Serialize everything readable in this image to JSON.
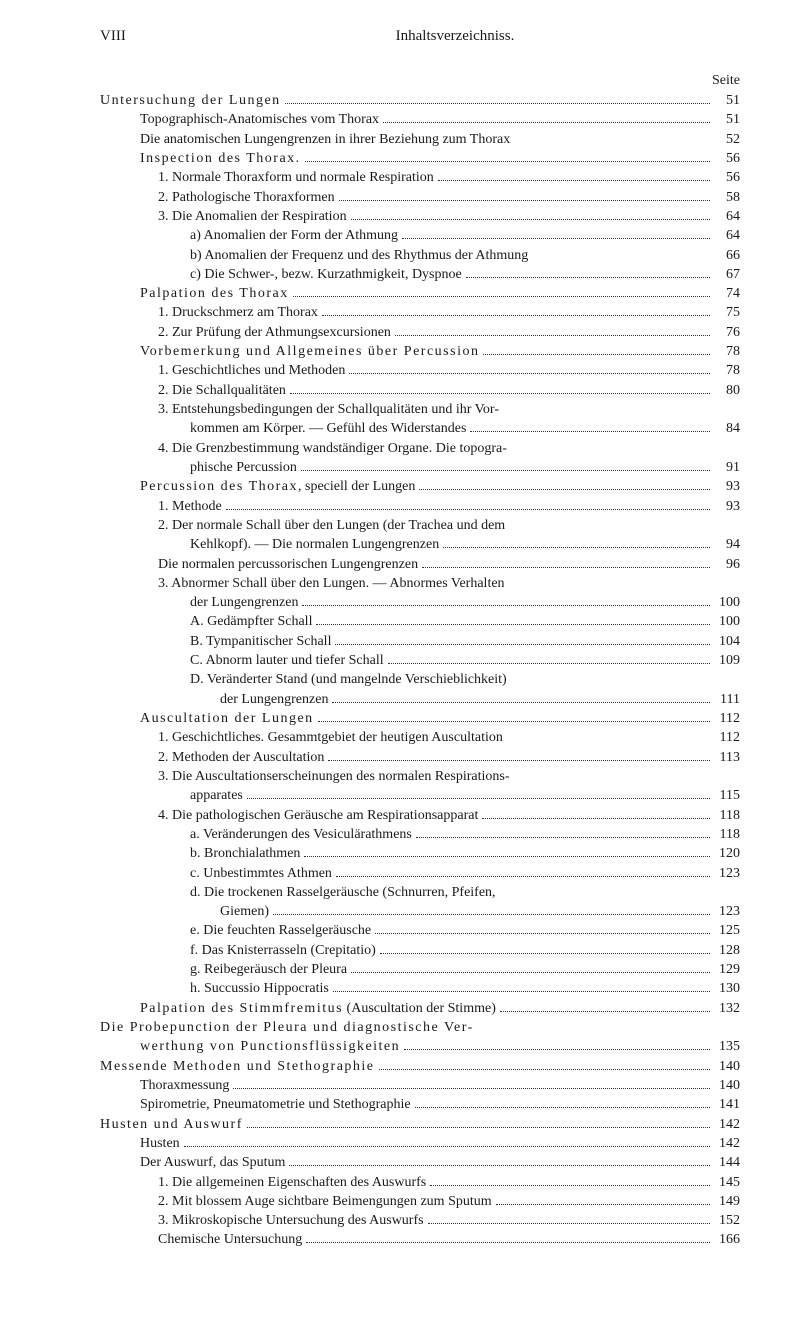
{
  "header": {
    "pageNumber": "VIII",
    "title": "Inhaltsverzeichniss."
  },
  "seiteLabel": "Seite",
  "entries": [
    {
      "text": "<span class='spaced'>Untersuchung der Lungen</span>",
      "page": "51",
      "indent": 0
    },
    {
      "text": "Topographisch-Anatomisches vom Thorax",
      "page": "51",
      "indent": 1
    },
    {
      "text": "Die anatomischen Lungengrenzen in ihrer Beziehung zum Thorax",
      "page": "52",
      "indent": 1,
      "noDots": true
    },
    {
      "text": "<span class='spaced'>Inspection des Thorax.</span>",
      "page": "56",
      "indent": 1
    },
    {
      "text": "1. Normale Thoraxform und normale Respiration",
      "page": "56",
      "indent": 2
    },
    {
      "text": "2. Pathologische Thoraxformen",
      "page": "58",
      "indent": 2
    },
    {
      "text": "3. Die Anomalien der Respiration",
      "page": "64",
      "indent": 2
    },
    {
      "text": "a) Anomalien der Form der Athmung",
      "page": "64",
      "indent": 3
    },
    {
      "text": "b) Anomalien der Frequenz und des Rhythmus der Athmung",
      "page": "66",
      "indent": 3,
      "noDots": true
    },
    {
      "text": "c) Die Schwer-, bezw. Kurzathmigkeit, Dyspnoe",
      "page": "67",
      "indent": 3
    },
    {
      "text": "<span class='spaced'>Palpation des Thorax</span>",
      "page": "74",
      "indent": 1
    },
    {
      "text": "1. Druckschmerz am Thorax",
      "page": "75",
      "indent": 2
    },
    {
      "text": "2. Zur Prüfung der Athmungsexcursionen",
      "page": "76",
      "indent": 2
    },
    {
      "text": "<span class='spaced'>Vorbemerkung und Allgemeines über Percussion</span>",
      "page": "78",
      "indent": 1
    },
    {
      "text": "1. Geschichtliches und Methoden",
      "page": "78",
      "indent": 2
    },
    {
      "text": "2. Die Schallqualitäten",
      "page": "80",
      "indent": 2
    },
    {
      "text": "3. Entstehungsbedingungen der Schallqualitäten und ihr Vor-",
      "page": "",
      "indent": 2,
      "noDots": true,
      "noPage": true
    },
    {
      "text": "kommen am Körper. — Gefühl des Widerstandes",
      "page": "84",
      "indent": 3,
      "continuation": true
    },
    {
      "text": "4. Die Grenzbestimmung wandständiger Organe. Die topogra-",
      "page": "",
      "indent": 2,
      "noDots": true,
      "noPage": true
    },
    {
      "text": "phische Percussion",
      "page": "91",
      "indent": 3,
      "continuation": true
    },
    {
      "text": "<span class='spaced'>Percussion des Thorax</span>, speciell der Lungen",
      "page": "93",
      "indent": 1
    },
    {
      "text": "1. Methode",
      "page": "93",
      "indent": 2
    },
    {
      "text": "2. Der normale Schall über den Lungen (der Trachea und dem",
      "page": "",
      "indent": 2,
      "noDots": true,
      "noPage": true
    },
    {
      "text": "Kehlkopf). — Die normalen Lungengrenzen",
      "page": "94",
      "indent": 3,
      "continuation": true
    },
    {
      "text": "Die normalen percussorischen Lungengrenzen",
      "page": "96",
      "indent": 2
    },
    {
      "text": "3. Abnormer Schall über den Lungen. — Abnormes Verhalten",
      "page": "",
      "indent": 2,
      "noDots": true,
      "noPage": true
    },
    {
      "text": "der Lungengrenzen",
      "page": "100",
      "indent": 3,
      "continuation": true
    },
    {
      "text": "A. Gedämpfter Schall",
      "page": "100",
      "indent": 3
    },
    {
      "text": "B. Tympanitischer Schall",
      "page": "104",
      "indent": 3
    },
    {
      "text": "C. Abnorm lauter und tiefer Schall",
      "page": "109",
      "indent": 3
    },
    {
      "text": "D. Veränderter Stand (und mangelnde Verschieblichkeit)",
      "page": "",
      "indent": 3,
      "noDots": true,
      "noPage": true
    },
    {
      "text": "der Lungengrenzen",
      "page": "111",
      "indent": 4,
      "continuation": true
    },
    {
      "text": "<span class='spaced'>Auscultation der Lungen</span>",
      "page": "112",
      "indent": 1
    },
    {
      "text": "1. Geschichtliches. Gesammtgebiet der heutigen Auscultation",
      "page": "112",
      "indent": 2,
      "noDots": true
    },
    {
      "text": "2. Methoden der Auscultation",
      "page": "113",
      "indent": 2
    },
    {
      "text": "3. Die Auscultationserscheinungen des normalen Respirations-",
      "page": "",
      "indent": 2,
      "noDots": true,
      "noPage": true
    },
    {
      "text": "apparates",
      "page": "115",
      "indent": 3,
      "continuation": true
    },
    {
      "text": "4. Die pathologischen Geräusche am Respirationsapparat",
      "page": "118",
      "indent": 2
    },
    {
      "text": "a. Veränderungen des Vesiculärathmens",
      "page": "118",
      "indent": 3
    },
    {
      "text": "b. Bronchialathmen",
      "page": "120",
      "indent": 3
    },
    {
      "text": "c. Unbestimmtes Athmen",
      "page": "123",
      "indent": 3
    },
    {
      "text": "d. Die trockenen Rasselgeräusche (Schnurren, Pfeifen,",
      "page": "",
      "indent": 3,
      "noDots": true,
      "noPage": true
    },
    {
      "text": "Giemen)",
      "page": "123",
      "indent": 4,
      "continuation": true
    },
    {
      "text": "e. Die feuchten Rasselgeräusche",
      "page": "125",
      "indent": 3
    },
    {
      "text": "f. Das Knisterrasseln (Crepitatio)",
      "page": "128",
      "indent": 3
    },
    {
      "text": "g. Reibegeräusch der Pleura",
      "page": "129",
      "indent": 3
    },
    {
      "text": "h. Succussio Hippocratis",
      "page": "130",
      "indent": 3
    },
    {
      "text": "<span class='spaced'>Palpation des Stimmfremitus</span> (Auscultation der Stimme)",
      "page": "132",
      "indent": 1
    },
    {
      "text": "<span class='spaced'>Die Probepunction der Pleura und diagnostische Ver-</span>",
      "page": "",
      "indent": 0,
      "noDots": true,
      "noPage": true
    },
    {
      "text": "<span class='spaced'>werthung von Punctionsflüssigkeiten</span>",
      "page": "135",
      "indent": 1,
      "continuation": true
    },
    {
      "text": "<span class='spaced'>Messende Methoden und Stethographie</span>",
      "page": "140",
      "indent": 0
    },
    {
      "text": "Thoraxmessung",
      "page": "140",
      "indent": 1
    },
    {
      "text": "Spirometrie, Pneumatometrie und Stethographie",
      "page": "141",
      "indent": 1
    },
    {
      "text": "<span class='spaced'>Husten und Auswurf</span>",
      "page": "142",
      "indent": 0
    },
    {
      "text": "Husten",
      "page": "142",
      "indent": 1
    },
    {
      "text": "Der Auswurf, das Sputum",
      "page": "144",
      "indent": 1
    },
    {
      "text": "1. Die allgemeinen Eigenschaften des Auswurfs",
      "page": "145",
      "indent": 2
    },
    {
      "text": "2. Mit blossem Auge sichtbare Beimengungen zum Sputum",
      "page": "149",
      "indent": 2
    },
    {
      "text": "3. Mikroskopische Untersuchung des Auswurfs",
      "page": "152",
      "indent": 2
    },
    {
      "text": "Chemische Untersuchung",
      "page": "166",
      "indent": 2
    }
  ]
}
